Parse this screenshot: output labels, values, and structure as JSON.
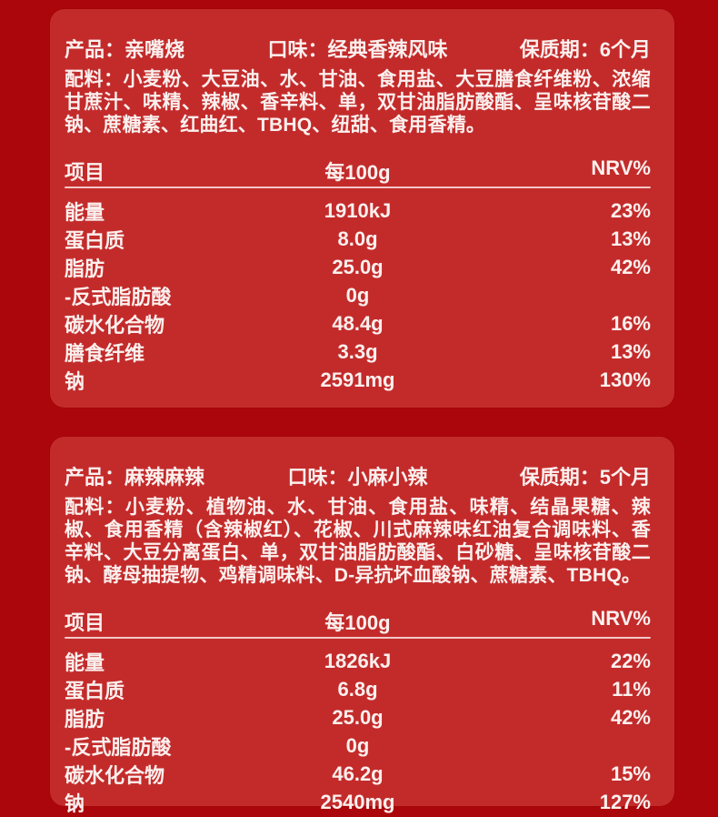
{
  "colors": {
    "page_background": "#ab060b",
    "card_background": "#c32b2b",
    "text": "#fbf0ee",
    "divider": "rgba(255,240,238,0.8)"
  },
  "cards": [
    {
      "product_label": "产品：",
      "product_value": "亲嘴烧",
      "flavor_label": "口味：",
      "flavor_value": "经典香辣风味",
      "shelf_life_label": "保质期：",
      "shelf_life_value": "6个月",
      "ingredients_label": "配料：",
      "ingredients_text": "小麦粉、大豆油、水、甘油、食用盐、大豆膳食纤维粉、浓缩甘蔗汁、味精、辣椒、香辛料、单，双甘油脂肪酸酯、呈味核苷酸二钠、蔗糖素、红曲红、TBHQ、纽甜、食用香精。",
      "table": {
        "headers": [
          "项目",
          "每100g",
          "NRV%"
        ],
        "rows": [
          [
            "能量",
            "1910kJ",
            "23%"
          ],
          [
            "蛋白质",
            "8.0g",
            "13%"
          ],
          [
            "脂肪",
            "25.0g",
            "42%"
          ],
          [
            "-反式脂肪酸",
            "0g",
            ""
          ],
          [
            "碳水化合物",
            "48.4g",
            "16%"
          ],
          [
            "膳食纤维",
            "3.3g",
            "13%"
          ],
          [
            "钠",
            "2591mg",
            "130%"
          ]
        ]
      }
    },
    {
      "product_label": "产品：",
      "product_value": "麻辣麻辣",
      "flavor_label": "口味：",
      "flavor_value": "小麻小辣",
      "shelf_life_label": "保质期：",
      "shelf_life_value": "5个月",
      "ingredients_label": "配料：",
      "ingredients_text": "小麦粉、植物油、水、甘油、食用盐、味精、结晶果糖、辣椒、食用香精（含辣椒红）、花椒、川式麻辣味红油复合调味料、香辛料、大豆分离蛋白、单，双甘油脂肪酸酯、白砂糖、呈味核苷酸二钠、酵母抽提物、鸡精调味料、D-异抗坏血酸钠、蔗糖素、TBHQ。",
      "table": {
        "headers": [
          "项目",
          "每100g",
          "NRV%"
        ],
        "rows": [
          [
            "能量",
            "1826kJ",
            "22%"
          ],
          [
            "蛋白质",
            "6.8g",
            "11%"
          ],
          [
            "脂肪",
            "25.0g",
            "42%"
          ],
          [
            "-反式脂肪酸",
            "0g",
            ""
          ],
          [
            "碳水化合物",
            "46.2g",
            "15%"
          ],
          [
            "钠",
            "2540mg",
            "127%"
          ]
        ]
      }
    }
  ]
}
